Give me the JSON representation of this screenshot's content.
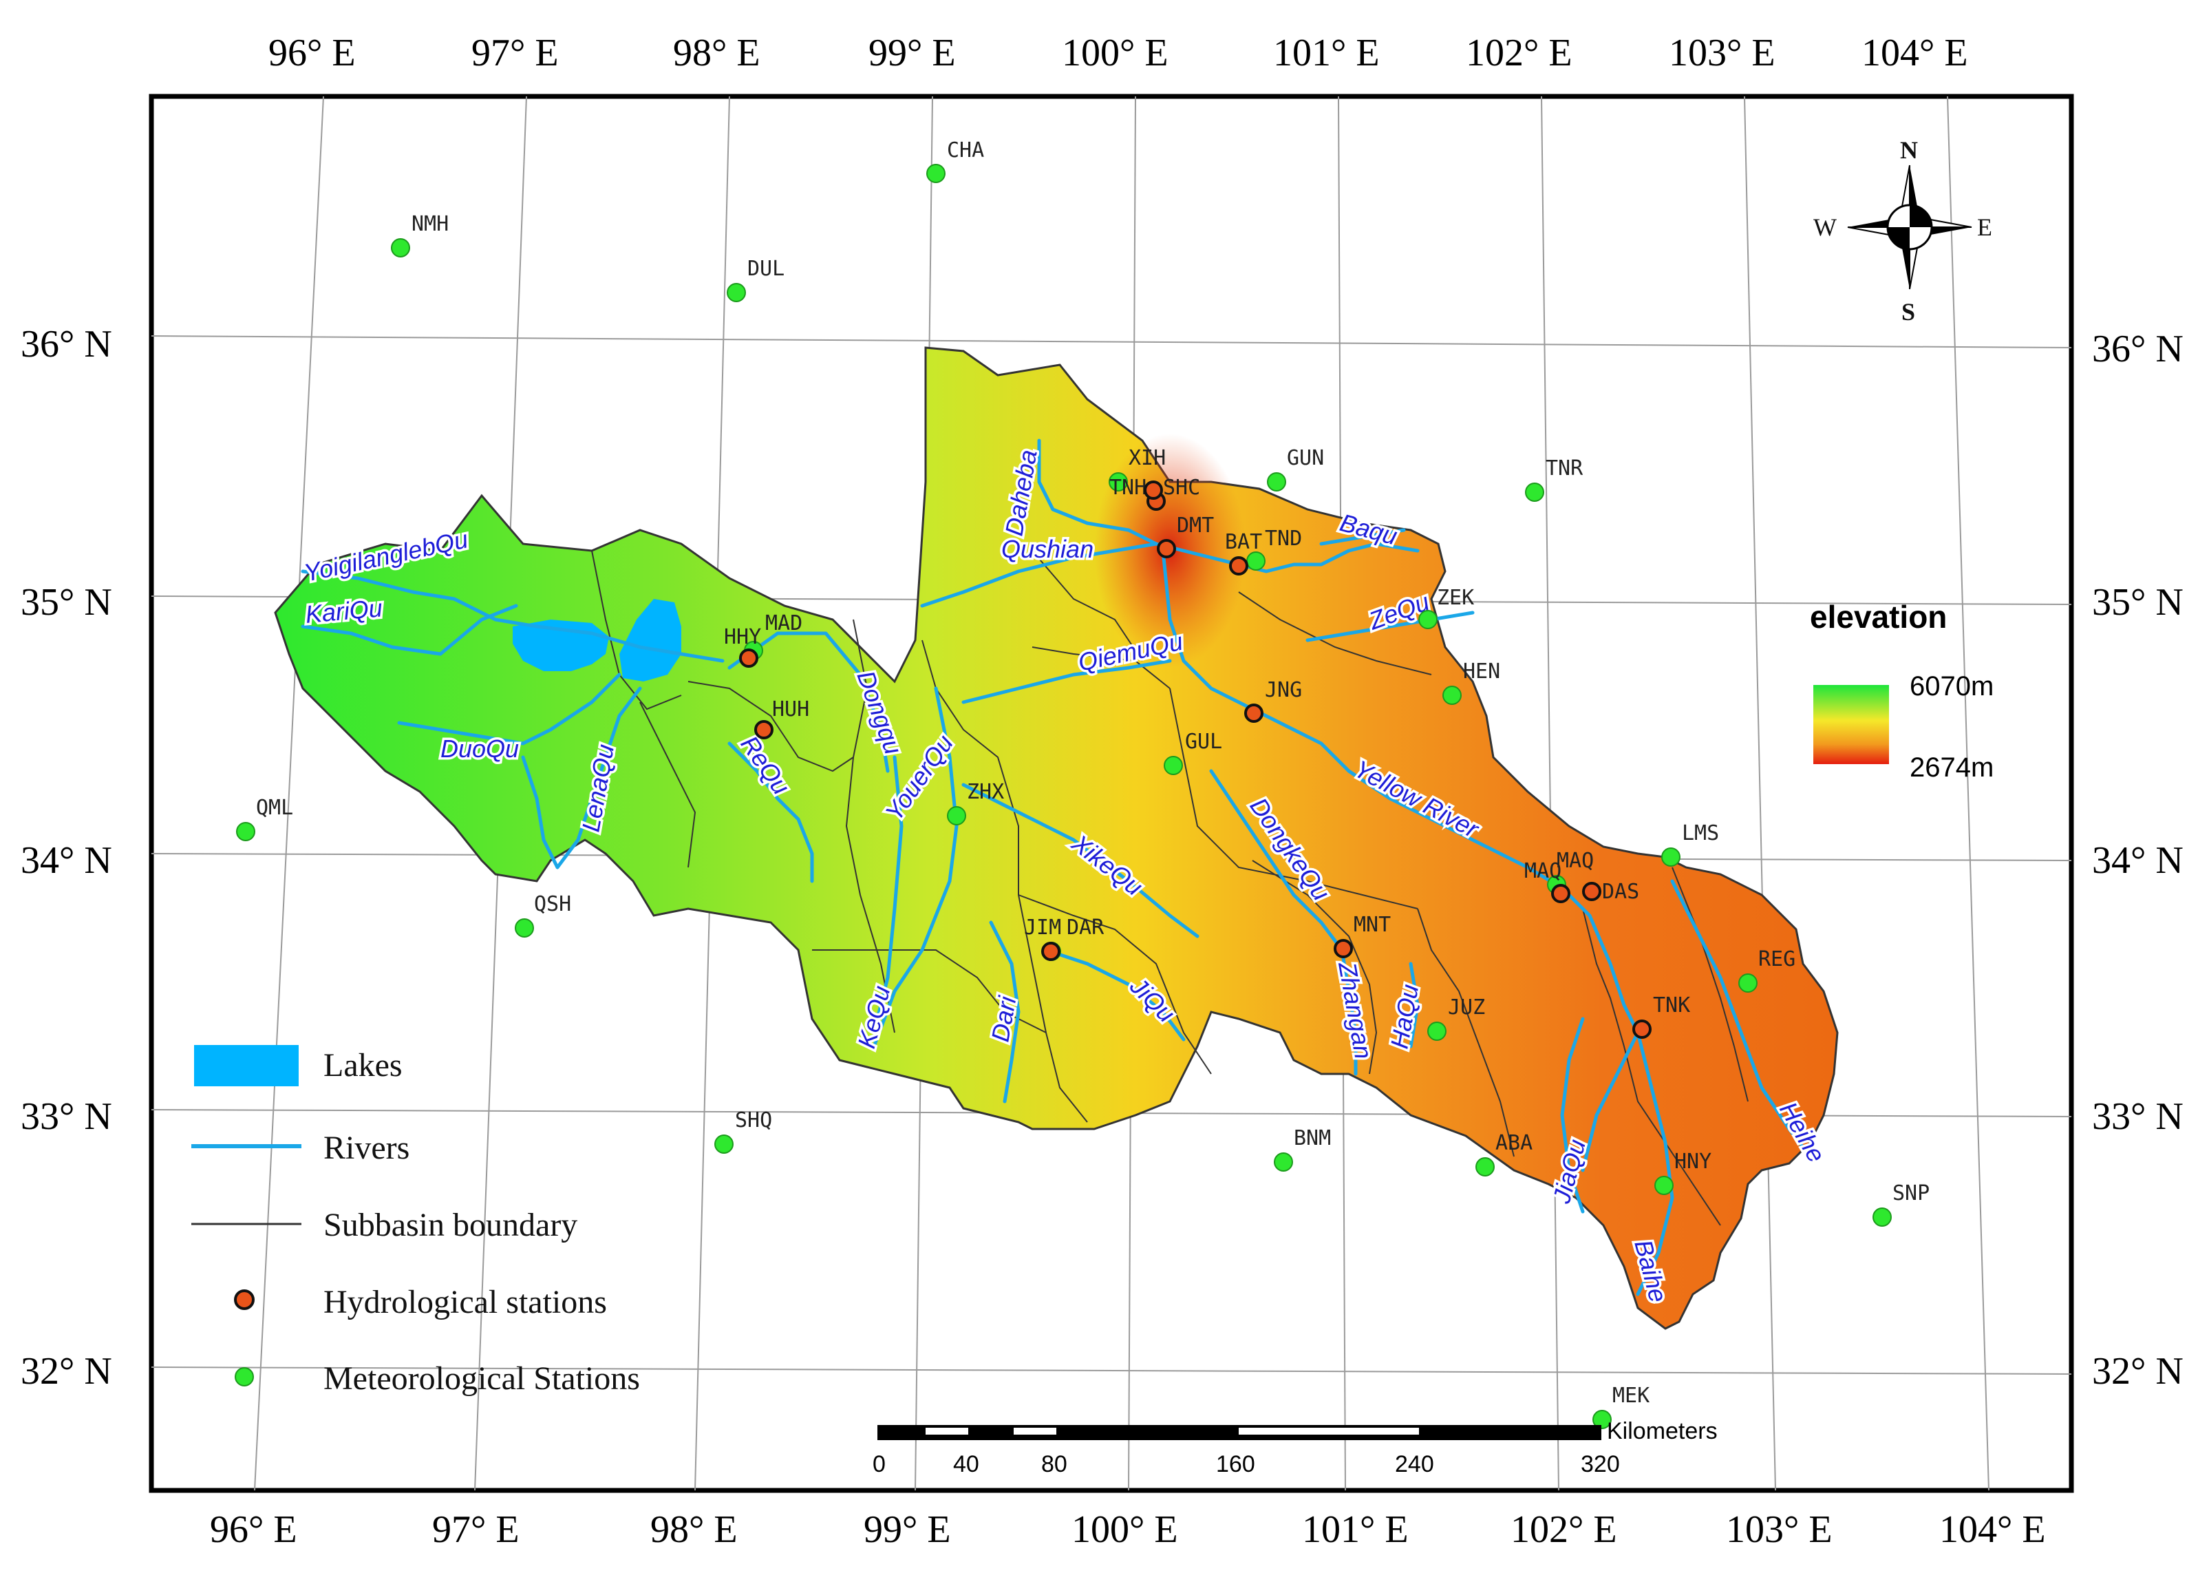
{
  "graticule": {
    "lon_top": [
      "96° E",
      "97° E",
      "98° E",
      "99° E",
      "100° E",
      "101° E",
      "102° E",
      "103° E",
      "104° E"
    ],
    "lon_bottom": [
      "96° E",
      "97° E",
      "98° E",
      "99° E",
      "100° E",
      "101° E",
      "102° E",
      "103° E",
      "104° E"
    ],
    "lat_left": [
      "36° N",
      "35° N",
      "34° N",
      "33° N",
      "32° N"
    ],
    "lat_right": [
      "36° N",
      "35° N",
      "34° N",
      "33° N",
      "32° N"
    ]
  },
  "meteorological_stations": [
    "NMH",
    "CHA",
    "DUL",
    "GUN",
    "TNR",
    "XIH",
    "TND",
    "ZEK",
    "HEN",
    "GUL",
    "MAD",
    "ZHX",
    "QML",
    "QSH",
    "LMS",
    "MAQ",
    "REG",
    "DAR",
    "JUZ",
    "SHQ",
    "BNM",
    "ABA",
    "HNY",
    "SNP",
    "MEK"
  ],
  "hydrological_stations": [
    "TNH",
    "SHC",
    "DMT",
    "BAT",
    "HHY",
    "HUH",
    "JNG",
    "MNT",
    "JIM",
    "MAQ",
    "DAS",
    "TNK"
  ],
  "rivers": [
    "YoigilanglebQu",
    "KariQu",
    "DuoQu",
    "LenaQu",
    "ReQu",
    "Dongqu",
    "YouerQu",
    "Daheba",
    "Qushian",
    "QiemuQu",
    "XikeQu",
    "Dari",
    "KeQu",
    "JiQu",
    "DongkeQu",
    "Zhangan",
    "HaQu",
    "Baqu",
    "ZeQu",
    "Yellow River",
    "JiaQu",
    "Baihe",
    "Heihe"
  ],
  "legend": {
    "lakes": "Lakes",
    "rivers": "Rivers",
    "subbasin": "Subbasin boundary",
    "hydro": "Hydrological stations",
    "meteo": "Meteorological Stations"
  },
  "elevation": {
    "title": "elevation",
    "max": "6070m",
    "min": "2674m",
    "high_color": "#1ee53a",
    "low_color": "#e51e0f"
  },
  "compass": {
    "n": "N",
    "s": "S",
    "e": "E",
    "w": "W"
  },
  "scalebar": {
    "ticks": [
      "0",
      "40",
      "80",
      "160",
      "240",
      "320"
    ],
    "unit": "Kilometers"
  },
  "colors": {
    "river": "#1aa7e8",
    "lake": "#00b4ff",
    "meteo": "#2ee82e",
    "hydro": "#e8541a",
    "border": "#333333"
  }
}
